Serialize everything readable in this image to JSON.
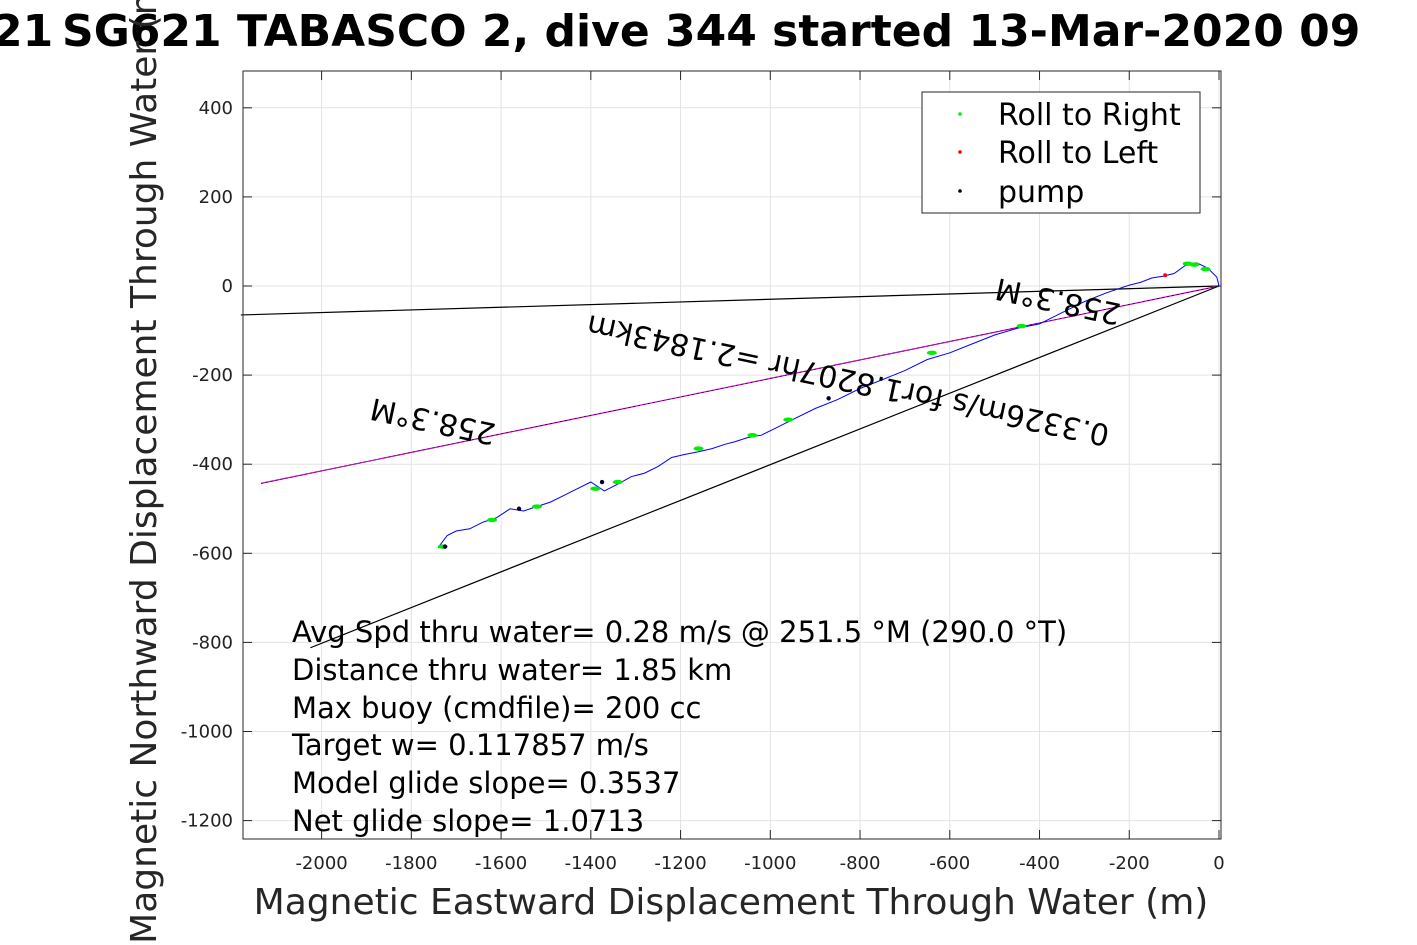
{
  "chart_data": {
    "type": "line",
    "title": "SG621 TABASCO 2, dive 344 started 13-Mar-2020 09",
    "title_prefix": "21",
    "xlabel": "Magnetic Eastward Displacement Through Water (m)",
    "ylabel": "Magnetic Northward Displacement Through Water (m)",
    "xlim": [
      -2180,
      0
    ],
    "ylim": [
      -1240,
      480
    ],
    "xticks": [
      -2000,
      -1800,
      -1600,
      -1400,
      -1200,
      -1000,
      -800,
      -600,
      -400,
      -200,
      0
    ],
    "yticks": [
      400,
      200,
      0,
      -200,
      -400,
      -600,
      -800,
      -1000,
      -1200
    ],
    "grid": true,
    "legend": {
      "placement": "top-right",
      "entries": [
        {
          "label": "Roll to Right",
          "color": "#00ee00"
        },
        {
          "label": "Roll to Left",
          "color": "#ff0000"
        },
        {
          "label": "pump",
          "color": "#000000"
        }
      ]
    },
    "reference_lines": [
      {
        "name": "upper",
        "x": [
          -2180,
          0
        ],
        "y": [
          -65,
          0
        ],
        "color": "#000000"
      },
      {
        "name": "heading",
        "x": [
          -2135,
          0
        ],
        "y": [
          -443,
          0
        ],
        "color": "#cc00cc"
      },
      {
        "name": "lower",
        "x": [
          -2025,
          0
        ],
        "y": [
          -812,
          0
        ],
        "color": "#000000"
      }
    ],
    "track": {
      "color": "#0000ff",
      "x": [
        0,
        -5,
        -25,
        -50,
        -75,
        -100,
        -125,
        -150,
        -175,
        -200,
        -250,
        -300,
        -350,
        -400,
        -450,
        -500,
        -550,
        -600,
        -650,
        -700,
        -750,
        -800,
        -850,
        -900,
        -950,
        -990,
        -1020,
        -1050,
        -1080,
        -1100,
        -1130,
        -1160,
        -1190,
        -1220,
        -1250,
        -1280,
        -1310,
        -1340,
        -1370,
        -1400,
        -1430,
        -1460,
        -1490,
        -1520,
        -1550,
        -1580,
        -1610,
        -1640,
        -1670,
        -1700,
        -1720,
        -1735,
        -1740
      ],
      "y": [
        0,
        20,
        40,
        52,
        46,
        28,
        22,
        18,
        8,
        2,
        -15,
        -35,
        -60,
        -85,
        -95,
        -110,
        -130,
        -150,
        -165,
        -190,
        -210,
        -230,
        -255,
        -275,
        -300,
        -320,
        -335,
        -340,
        -350,
        -355,
        -365,
        -372,
        -378,
        -385,
        -405,
        -420,
        -428,
        -445,
        -460,
        -440,
        -455,
        -470,
        -485,
        -495,
        -505,
        -500,
        -520,
        -530,
        -545,
        -550,
        -560,
        -580,
        -588
      ]
    },
    "roll_right_points": [
      {
        "x": -30,
        "y": 38
      },
      {
        "x": -55,
        "y": 48
      },
      {
        "x": -70,
        "y": 50
      },
      {
        "x": -440,
        "y": -90
      },
      {
        "x": -640,
        "y": -150
      },
      {
        "x": -960,
        "y": -300
      },
      {
        "x": -1040,
        "y": -335
      },
      {
        "x": -1160,
        "y": -365
      },
      {
        "x": -1340,
        "y": -440
      },
      {
        "x": -1390,
        "y": -455
      },
      {
        "x": -1520,
        "y": -495
      },
      {
        "x": -1620,
        "y": -525
      },
      {
        "x": -1730,
        "y": -585
      }
    ],
    "roll_left_points": [
      {
        "x": -120,
        "y": 24
      }
    ],
    "pump_points": [
      {
        "x": -870,
        "y": -252
      },
      {
        "x": -1375,
        "y": -440
      },
      {
        "x": -1560,
        "y": -500
      },
      {
        "x": -1725,
        "y": -585
      }
    ],
    "line_labels": [
      {
        "text": "258.3°M"
      },
      {
        "text": "0.3326m/s for1.8207hr =2.1843km"
      },
      {
        "text": "258.3°M"
      }
    ],
    "annotations": [
      "Avg Spd thru water=  0.28 m/s @ 251.5 °M (290.0 °T)",
      "Distance thru water=  1.85 km",
      "Max buoy (cmdfile)= 200 cc",
      "Target w= 0.117857 m/s",
      "Model glide slope= 0.3537",
      "Net glide slope= 1.0713"
    ]
  }
}
